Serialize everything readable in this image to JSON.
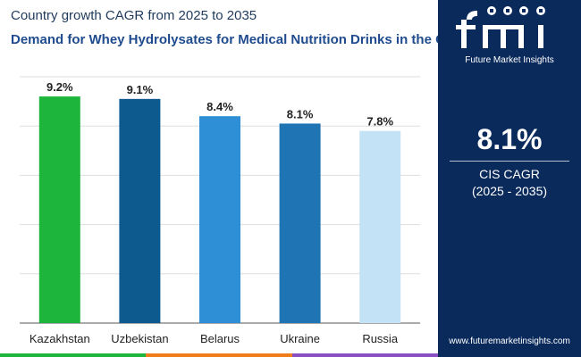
{
  "header": {
    "subtitle": "Country growth CAGR from 2025 to 2035",
    "title": "Demand for Whey Hydrolysates for Medical Nutrition Drinks in the CIS"
  },
  "chart_data": {
    "type": "bar",
    "categories": [
      "Kazakhstan",
      "Uzbekistan",
      "Belarus",
      "Ukraine",
      "Russia"
    ],
    "values": [
      9.2,
      9.1,
      8.4,
      8.1,
      7.8
    ],
    "value_labels": [
      "9.2%",
      "9.1%",
      "8.4%",
      "8.1%",
      "7.8%"
    ],
    "bar_colors": [
      "#1db53c",
      "#0d5a8f",
      "#2f8fd6",
      "#1f74b3",
      "#c4e2f5"
    ],
    "ylim": [
      0,
      10
    ],
    "grid": true
  },
  "panel": {
    "brand": "Future Market Insights",
    "cagr_value": "8.1%",
    "cagr_label": "CIS CAGR",
    "cagr_period": "(2025 - 2035)",
    "website": "www.futuremarketinsights.com",
    "background_color": "#0a2a5c"
  },
  "strip_colors": [
    "#1db53c",
    "#f07d1a",
    "#8a4fc2"
  ]
}
